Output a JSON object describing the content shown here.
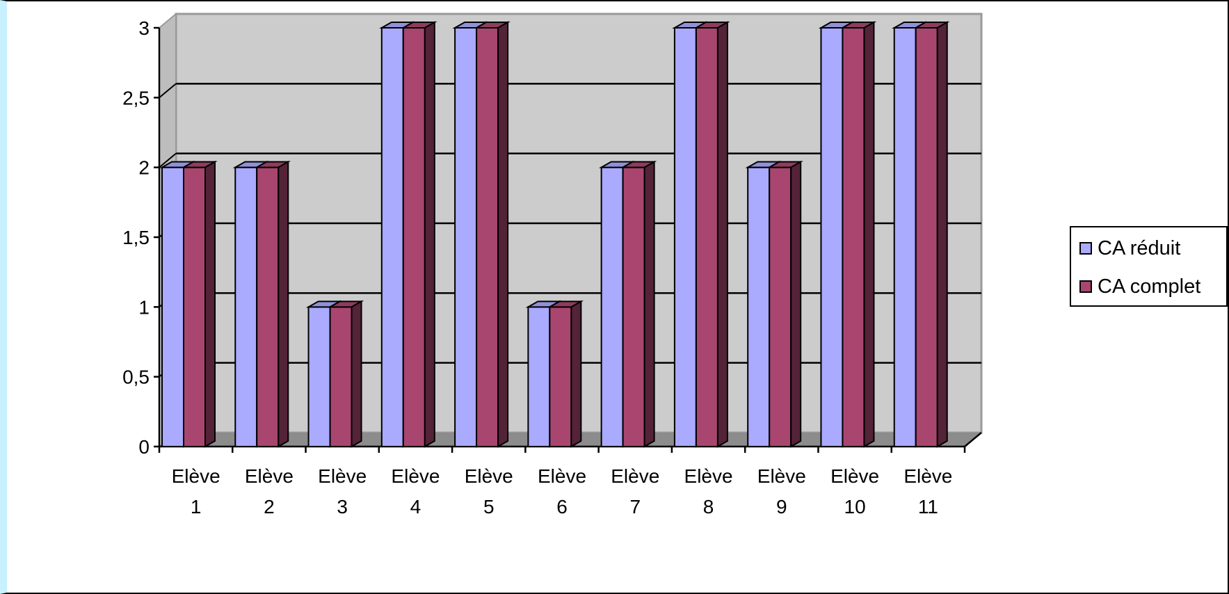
{
  "chart_data": {
    "type": "bar",
    "style": "3d-clustered",
    "categories": [
      "Elève 1",
      "Elève 2",
      "Elève 3",
      "Elève 4",
      "Elève 5",
      "Elève 6",
      "Elève 7",
      "Elève 8",
      "Elève 9",
      "Elève 10",
      "Elève 11"
    ],
    "category_lines": [
      [
        "Elève",
        "1"
      ],
      [
        "Elève",
        "2"
      ],
      [
        "Elève",
        "3"
      ],
      [
        "Elève",
        "4"
      ],
      [
        "Elève",
        "5"
      ],
      [
        "Elève",
        "6"
      ],
      [
        "Elève",
        "7"
      ],
      [
        "Elève",
        "8"
      ],
      [
        "Elève",
        "9"
      ],
      [
        "Elève",
        "10"
      ],
      [
        "Elève",
        "11"
      ]
    ],
    "series": [
      {
        "name": "CA réduit",
        "values": [
          2,
          2,
          1,
          3,
          3,
          1,
          2,
          3,
          2,
          3,
          3
        ],
        "color": "#aaaaff"
      },
      {
        "name": "CA complet",
        "values": [
          2,
          2,
          1,
          3,
          3,
          1,
          2,
          3,
          2,
          3,
          3
        ],
        "color": "#a8466f"
      }
    ],
    "y_ticks": [
      "0",
      "0,5",
      "1",
      "1,5",
      "2",
      "2,5",
      "3"
    ],
    "ylim": [
      0,
      3
    ],
    "grid": true,
    "legend_position": "right",
    "colors": {
      "plot_wall": "#cccccc",
      "plot_floor": "#8c8c8c",
      "frame_border": "#000000",
      "left_accent": "#c8f0ff"
    }
  },
  "legend": {
    "entries": [
      {
        "label": "CA réduit",
        "color": "#aaaaff"
      },
      {
        "label": "CA complet",
        "color": "#a8466f"
      }
    ]
  }
}
